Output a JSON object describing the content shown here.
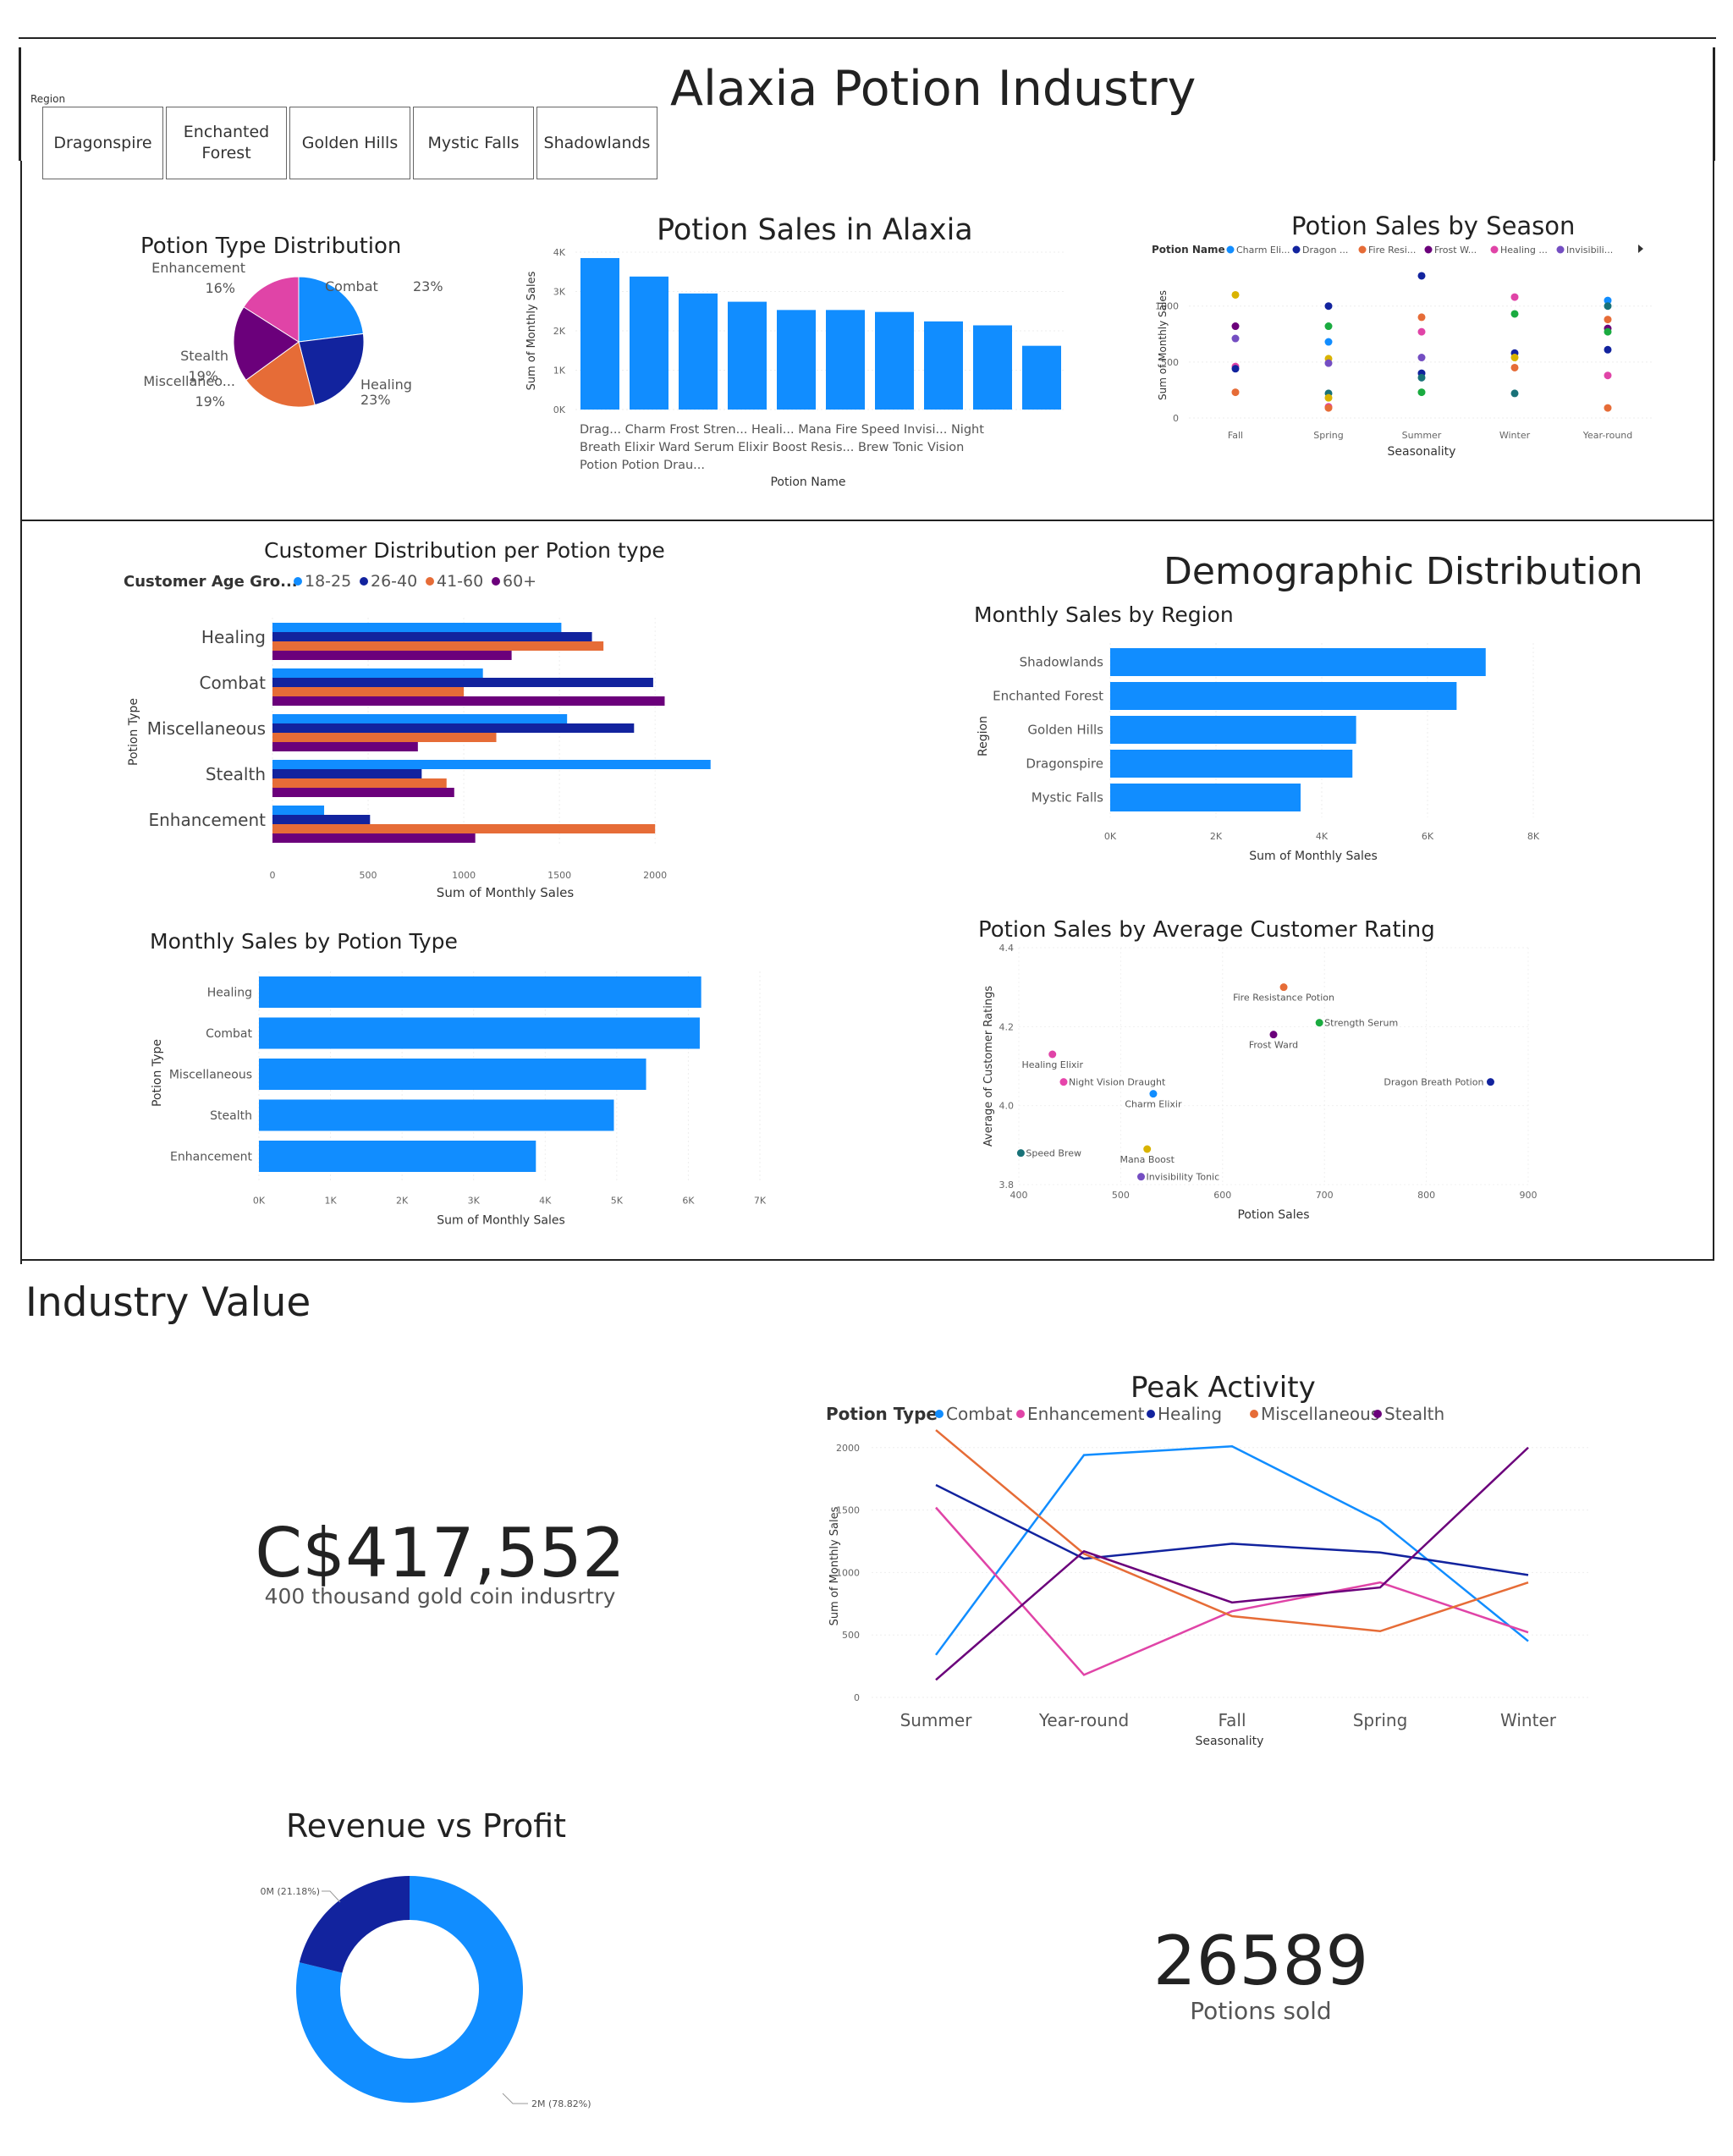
{
  "header": {
    "title": "Alaxia Potion Industry",
    "slicer_label": "Region",
    "slicer_options": [
      "Dragonspire",
      "Enchanted Forest",
      "Golden Hills",
      "Mystic Falls",
      "Shadowlands"
    ]
  },
  "colors": {
    "accent_blue": "#118DFF",
    "navy": "#12239E",
    "orange": "#E66C37",
    "purple": "#6B007B",
    "pink": "#E044A7",
    "yellow": "#D9B300",
    "green": "#1AAB40",
    "teal": "#15C6F4"
  },
  "potion_type_distribution": {
    "chart_data": {
      "type": "pie",
      "title": "Potion Type Distribution",
      "slices": [
        {
          "label": "Combat",
          "pct_label": "23%",
          "value": 23,
          "color": "#118DFF"
        },
        {
          "label": "Healing",
          "pct_label": "23%",
          "value": 23,
          "color": "#12239E"
        },
        {
          "label": "Miscellaneo...",
          "pct_label": "19%",
          "value": 19,
          "color": "#E66C37"
        },
        {
          "label": "Stealth",
          "pct_label": "19%",
          "value": 19,
          "color": "#6B007B"
        },
        {
          "label": "Enhancement",
          "pct_label": "16%",
          "value": 16,
          "color": "#E044A7"
        }
      ]
    }
  },
  "potion_sales": {
    "chart_data": {
      "type": "bar",
      "title": "Potion Sales in Alaxia",
      "ylabel": "Sum of Monthly Sales",
      "xlabel": "Potion Name",
      "yticks": [
        "0K",
        "1K",
        "2K",
        "3K",
        "4K"
      ],
      "ylim": [
        0,
        4000
      ],
      "categories": [
        "Drag... Breath Potion",
        "Charm Elixir",
        "Frost Ward",
        "Stren... Serum",
        "Heali... Elixir",
        "Mana Boost",
        "Fire Resis... Potion",
        "Speed Brew",
        "Invisi... Tonic",
        "Night Vision Drau..."
      ],
      "values": [
        3850,
        3380,
        2950,
        2740,
        2530,
        2530,
        2480,
        2240,
        2140,
        1620
      ],
      "axis_label_lines": [
        "Drag... Charm Frost Stren... Heali... Mana Fire Speed Invisi... Night",
        "Breath Elixir Ward Serum Elixir Boost Resis... Brew Tonic Vision",
        "Potion Potion Drau..."
      ]
    }
  },
  "sales_by_season": {
    "chart_data": {
      "type": "scatter",
      "title": "Potion Sales by Season",
      "legend_title": "Potion Name",
      "legend": [
        {
          "name": "Charm Eli...",
          "color": "#118DFF"
        },
        {
          "name": "Dragon ...",
          "color": "#12239E"
        },
        {
          "name": "Fire Resi...",
          "color": "#E66C37"
        },
        {
          "name": "Frost W...",
          "color": "#6B007B"
        },
        {
          "name": "Healing ...",
          "color": "#E044A7"
        },
        {
          "name": "Invisibili...",
          "color": "#744EC2"
        }
      ],
      "xlabel": "Seasonality",
      "ylabel": "Sum of Monthly Sales",
      "categories": [
        "Fall",
        "Spring",
        "Summer",
        "Winter",
        "Year-round"
      ],
      "yticks": [
        "0",
        "500",
        "1000"
      ],
      "ylim": [
        0,
        1300
      ],
      "points": [
        {
          "x": "Fall",
          "y": 1100,
          "color": "#D9B300"
        },
        {
          "x": "Fall",
          "y": 820,
          "color": "#6B007B"
        },
        {
          "x": "Fall",
          "y": 710,
          "color": "#744EC2"
        },
        {
          "x": "Fall",
          "y": 460,
          "color": "#E044A7"
        },
        {
          "x": "Fall",
          "y": 440,
          "color": "#12239E"
        },
        {
          "x": "Fall",
          "y": 230,
          "color": "#E66C37"
        },
        {
          "x": "Spring",
          "y": 1000,
          "color": "#12239E"
        },
        {
          "x": "Spring",
          "y": 820,
          "color": "#1AAB40"
        },
        {
          "x": "Spring",
          "y": 680,
          "color": "#118DFF"
        },
        {
          "x": "Spring",
          "y": 530,
          "color": "#D9B300"
        },
        {
          "x": "Spring",
          "y": 490,
          "color": "#744EC2"
        },
        {
          "x": "Spring",
          "y": 220,
          "color": "#197278"
        },
        {
          "x": "Spring",
          "y": 180,
          "color": "#D9B300"
        },
        {
          "x": "Spring",
          "y": 100,
          "color": "#E044A7"
        },
        {
          "x": "Spring",
          "y": 90,
          "color": "#E66C37"
        },
        {
          "x": "Summer",
          "y": 1270,
          "color": "#12239E"
        },
        {
          "x": "Summer",
          "y": 900,
          "color": "#E66C37"
        },
        {
          "x": "Summer",
          "y": 770,
          "color": "#E044A7"
        },
        {
          "x": "Summer",
          "y": 540,
          "color": "#744EC2"
        },
        {
          "x": "Summer",
          "y": 400,
          "color": "#12239E"
        },
        {
          "x": "Summer",
          "y": 360,
          "color": "#197278"
        },
        {
          "x": "Summer",
          "y": 230,
          "color": "#1AAB40"
        },
        {
          "x": "Winter",
          "y": 1080,
          "color": "#E044A7"
        },
        {
          "x": "Winter",
          "y": 930,
          "color": "#1AAB40"
        },
        {
          "x": "Winter",
          "y": 580,
          "color": "#12239E"
        },
        {
          "x": "Winter",
          "y": 540,
          "color": "#D9B300"
        },
        {
          "x": "Winter",
          "y": 450,
          "color": "#E66C37"
        },
        {
          "x": "Winter",
          "y": 220,
          "color": "#197278"
        },
        {
          "x": "Year-round",
          "y": 1050,
          "color": "#118DFF"
        },
        {
          "x": "Year-round",
          "y": 1000,
          "color": "#197278"
        },
        {
          "x": "Year-round",
          "y": 880,
          "color": "#E66C37"
        },
        {
          "x": "Year-round",
          "y": 800,
          "color": "#6B007B"
        },
        {
          "x": "Year-round",
          "y": 770,
          "color": "#1AAB40"
        },
        {
          "x": "Year-round",
          "y": 610,
          "color": "#12239E"
        },
        {
          "x": "Year-round",
          "y": 380,
          "color": "#E044A7"
        },
        {
          "x": "Year-round",
          "y": 90,
          "color": "#E66C37"
        }
      ]
    }
  },
  "customer_distribution": {
    "chart_data": {
      "type": "bar",
      "orientation": "horizontal",
      "title": "Customer Distribution per Potion type",
      "legend_title": "Customer Age Gro...",
      "xlabel": "Sum of Monthly Sales",
      "ylabel": "Potion Type",
      "xticks": [
        "0",
        "500",
        "1000",
        "1500",
        "2000"
      ],
      "xlim": [
        0,
        2300
      ],
      "categories": [
        "Healing",
        "Combat",
        "Miscellaneous",
        "Stealth",
        "Enhancement"
      ],
      "series": [
        {
          "name": "18-25",
          "color": "#118DFF",
          "values": [
            1510,
            1100,
            1540,
            2290,
            270
          ]
        },
        {
          "name": "26-40",
          "color": "#12239E",
          "values": [
            1670,
            1990,
            1890,
            780,
            510
          ]
        },
        {
          "name": "41-60",
          "color": "#E66C37",
          "values": [
            1730,
            1000,
            1170,
            910,
            2000
          ]
        },
        {
          "name": "60+",
          "color": "#6B007B",
          "values": [
            1250,
            2050,
            760,
            950,
            1060
          ]
        }
      ]
    }
  },
  "demographic": {
    "heading": "Demographic Distribution",
    "chart_data": {
      "type": "bar",
      "orientation": "horizontal",
      "title": "Monthly Sales by Region",
      "xlabel": "Sum of Monthly Sales",
      "ylabel": "Region",
      "xticks": [
        "0K",
        "2K",
        "4K",
        "6K",
        "8K"
      ],
      "xlim": [
        0,
        8000
      ],
      "categories": [
        "Shadowlands",
        "Enchanted Forest",
        "Golden Hills",
        "Dragonspire",
        "Mystic Falls"
      ],
      "values": [
        7100,
        6550,
        4650,
        4580,
        3600
      ]
    }
  },
  "sales_by_type": {
    "chart_data": {
      "type": "bar",
      "orientation": "horizontal",
      "title": "Monthly Sales by Potion Type",
      "xlabel": "Sum of Monthly Sales",
      "ylabel": "Potion Type",
      "xticks": [
        "0K",
        "1K",
        "2K",
        "3K",
        "4K",
        "5K",
        "6K",
        "7K"
      ],
      "xlim": [
        0,
        7000
      ],
      "categories": [
        "Healing",
        "Combat",
        "Miscellaneous",
        "Stealth",
        "Enhancement"
      ],
      "values": [
        6180,
        6160,
        5410,
        4960,
        3870
      ]
    }
  },
  "rating_scatter": {
    "chart_data": {
      "type": "scatter",
      "title": "Potion Sales by Average Customer Rating",
      "xlabel": "Potion Sales",
      "ylabel": "Average of Customer Ratings",
      "xticks": [
        "400",
        "500",
        "600",
        "700",
        "800",
        "900"
      ],
      "xlim": [
        400,
        900
      ],
      "yticks": [
        "3.8",
        "4.0",
        "4.2",
        "4.4"
      ],
      "ylim": [
        3.8,
        4.4
      ],
      "points": [
        {
          "label": "Fire Resistance Potion",
          "x": 660,
          "y": 4.3,
          "color": "#E66C37"
        },
        {
          "label": "Strength Serum",
          "x": 695,
          "y": 4.21,
          "color": "#1AAB40"
        },
        {
          "label": "Frost Ward",
          "x": 650,
          "y": 4.18,
          "color": "#6B007B"
        },
        {
          "label": "Healing Elixir",
          "x": 433,
          "y": 4.13,
          "color": "#E044A7"
        },
        {
          "label": "Night Vision Draught",
          "x": 444,
          "y": 4.06,
          "color": "#E645AB"
        },
        {
          "label": "Dragon Breath Potion",
          "x": 863,
          "y": 4.06,
          "color": "#12239E"
        },
        {
          "label": "Charm Elixir",
          "x": 532,
          "y": 4.03,
          "color": "#118DFF"
        },
        {
          "label": "Speed Brew",
          "x": 402,
          "y": 3.88,
          "color": "#197278"
        },
        {
          "label": "Mana Boost",
          "x": 526,
          "y": 3.89,
          "color": "#D9B300"
        },
        {
          "label": "Invisibility Tonic",
          "x": 520,
          "y": 3.82,
          "color": "#744EC2"
        }
      ]
    }
  },
  "industry": {
    "heading": "Industry Value",
    "kpi_value": "C$417,552",
    "kpi_caption": "400 thousand gold coin indusrtry",
    "potions_value": "26589",
    "potions_caption": "Potions sold"
  },
  "peak_activity": {
    "chart_data": {
      "type": "line",
      "title": "Peak Activity",
      "legend_title": "Potion Type",
      "xlabel": "Seasonality",
      "ylabel": "Sum of Monthly Sales",
      "x": [
        "Summer",
        "Year-round",
        "Fall",
        "Spring",
        "Winter"
      ],
      "yticks": [
        "0",
        "500",
        "1000",
        "1500",
        "2000"
      ],
      "ylim": [
        0,
        2100
      ],
      "series": [
        {
          "name": "Combat",
          "color": "#118DFF",
          "values": [
            340,
            1940,
            2010,
            1410,
            450
          ]
        },
        {
          "name": "Enhancement",
          "color": "#E044A7",
          "values": [
            1520,
            180,
            690,
            920,
            520
          ]
        },
        {
          "name": "Healing",
          "color": "#12239E",
          "values": [
            1700,
            1110,
            1230,
            1160,
            980
          ]
        },
        {
          "name": "Miscellaneous",
          "color": "#E66C37",
          "values": [
            2140,
            1150,
            650,
            530,
            920
          ]
        },
        {
          "name": "Stealth",
          "color": "#6B007B",
          "values": [
            140,
            1170,
            760,
            880,
            2000
          ]
        }
      ]
    }
  },
  "revenue_profit": {
    "chart_data": {
      "type": "pie",
      "subtype": "donut",
      "title": "Revenue vs Profit",
      "slices": [
        {
          "label": "2M (78.82%)",
          "value": 78.82,
          "color": "#118DFF"
        },
        {
          "label": "0M (21.18%)",
          "value": 21.18,
          "color": "#12239E"
        }
      ]
    }
  }
}
